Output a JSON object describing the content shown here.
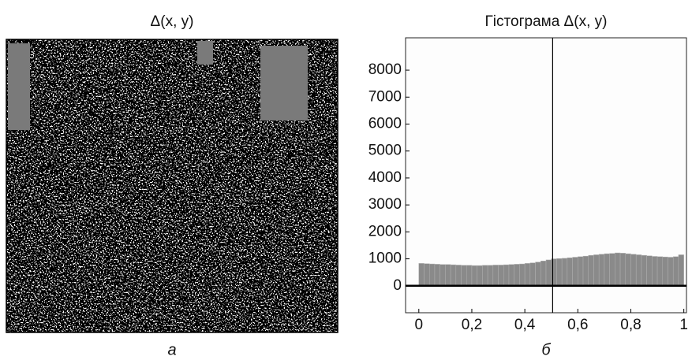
{
  "chart_data": [
    {
      "type": "image",
      "title": "Δ(x, y)",
      "caption": "а"
    },
    {
      "type": "histogram",
      "title": "Гістограма Δ(x, y)",
      "caption": "б",
      "bins": [
        0,
        0.02,
        0.04,
        0.06,
        0.08,
        0.1,
        0.12,
        0.14,
        0.16,
        0.18,
        0.2,
        0.22,
        0.24,
        0.26,
        0.28,
        0.3,
        0.32,
        0.34,
        0.36,
        0.38,
        0.4,
        0.42,
        0.44,
        0.46,
        0.48,
        0.5,
        0.52,
        0.54,
        0.56,
        0.58,
        0.6,
        0.62,
        0.64,
        0.66,
        0.68,
        0.7,
        0.72,
        0.74,
        0.76,
        0.78,
        0.8,
        0.82,
        0.84,
        0.86,
        0.88,
        0.9,
        0.92,
        0.94,
        0.96,
        0.98,
        1
      ],
      "values": [
        830,
        820,
        810,
        800,
        790,
        790,
        780,
        770,
        760,
        760,
        750,
        750,
        760,
        760,
        770,
        770,
        780,
        790,
        800,
        810,
        830,
        850,
        880,
        920,
        960,
        1000,
        1010,
        1020,
        1040,
        1060,
        1080,
        1100,
        1130,
        1150,
        1170,
        1190,
        1200,
        1220,
        1210,
        1190,
        1170,
        1150,
        1130,
        1110,
        1090,
        1080,
        1070,
        1060,
        1080,
        1150
      ],
      "color": "#8a8a8a",
      "marker_x": 0.505,
      "xlim": [
        -0.05,
        1.01
      ],
      "ylim": [
        -1000,
        9200
      ],
      "xticks": [
        0,
        {
          "value": 0.2,
          "label": "0,2"
        },
        {
          "value": 0.4,
          "label": "0,4"
        },
        {
          "value": 0.6,
          "label": "0,6"
        },
        {
          "value": 0.8,
          "label": "0,8"
        },
        1
      ],
      "yticks": [
        0,
        1000,
        2000,
        3000,
        4000,
        5000,
        6000,
        7000,
        8000
      ]
    }
  ]
}
